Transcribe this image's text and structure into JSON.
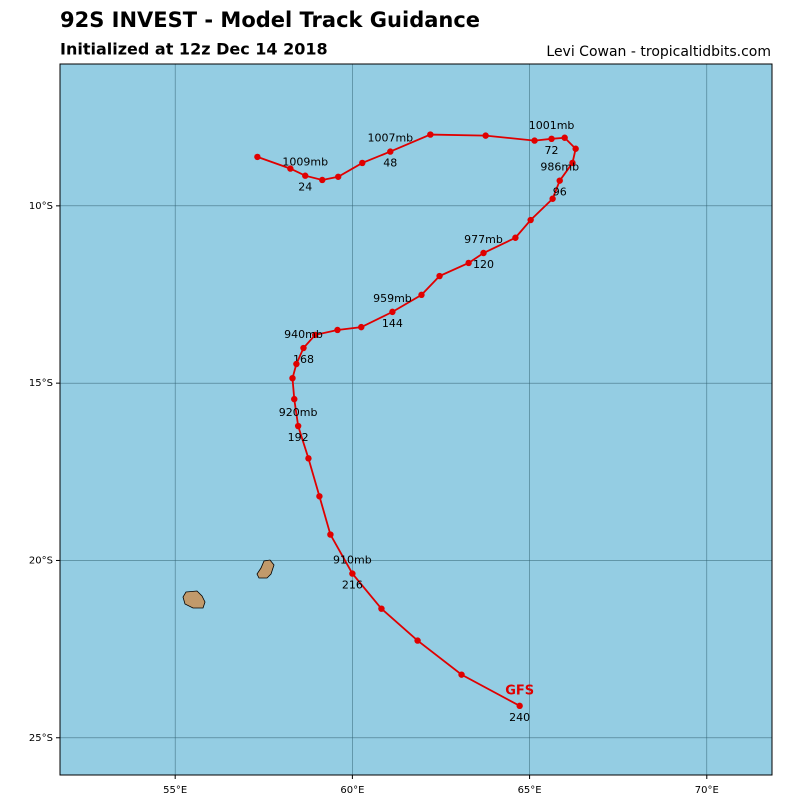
{
  "chart_data": {
    "type": "track",
    "title": "92S INVEST - Model Track Guidance",
    "subtitle": "Initialized at 12z Dec 14 2018",
    "credit": "Levi Cowan - tropicaltidbits.com",
    "xlim": [
      51.75,
      71.84
    ],
    "ylim": [
      -26.05,
      -6
    ],
    "xticks": [
      {
        "value": 55,
        "label": "55°E"
      },
      {
        "value": 60,
        "label": "60°E"
      },
      {
        "value": 65,
        "label": "65°E"
      },
      {
        "value": 70,
        "label": "70°E"
      }
    ],
    "yticks": [
      {
        "value": -10,
        "label": "10°S"
      },
      {
        "value": -15,
        "label": "15°S"
      },
      {
        "value": -20,
        "label": "20°S"
      },
      {
        "value": -25,
        "label": "25°S"
      }
    ],
    "grid": true,
    "ocean_color": "#94cde3",
    "land_color": "#c19a6b",
    "series": [
      {
        "name": "GFS",
        "color": "#e00000",
        "x": [
          57.32,
          58.25,
          58.67,
          59.15,
          59.6,
          60.28,
          61.07,
          62.2,
          63.76,
          65.14,
          65.62,
          65.99,
          66.3,
          66.21,
          65.85,
          65.65,
          65.03,
          64.6,
          63.7,
          63.28,
          62.46,
          61.95,
          61.13,
          60.25,
          59.58,
          58.95,
          58.62,
          58.42,
          58.31,
          58.36,
          58.47,
          58.76,
          59.07,
          59.38,
          60.0,
          60.82,
          61.84,
          63.08,
          64.72
        ],
        "values": [
          -8.62,
          -8.95,
          -9.15,
          -9.27,
          -9.18,
          -8.79,
          -8.47,
          -7.99,
          -8.02,
          -8.16,
          -8.11,
          -8.08,
          -8.39,
          -8.79,
          -9.29,
          -9.8,
          -10.4,
          -10.9,
          -11.33,
          -11.61,
          -11.98,
          -12.51,
          -12.99,
          -13.42,
          -13.5,
          -13.64,
          -14.01,
          -14.46,
          -14.86,
          -15.45,
          -16.21,
          -17.12,
          -18.19,
          -19.27,
          -20.37,
          -21.36,
          -22.26,
          -23.22,
          -24.1
        ],
        "pressure_labels": [
          null,
          null,
          "1009mb",
          null,
          null,
          null,
          "1007mb",
          null,
          null,
          null,
          "1001mb",
          null,
          null,
          null,
          "986mb",
          null,
          null,
          null,
          "977mb",
          null,
          null,
          null,
          "959mb",
          null,
          null,
          null,
          "940mb",
          null,
          null,
          null,
          "920mb",
          null,
          null,
          null,
          "910mb",
          null,
          null,
          null,
          null
        ],
        "hour_labels": [
          null,
          null,
          "24",
          null,
          null,
          null,
          "48",
          null,
          null,
          null,
          "72",
          null,
          null,
          null,
          "96",
          null,
          null,
          null,
          "120",
          null,
          null,
          null,
          "144",
          null,
          null,
          null,
          "168",
          null,
          null,
          null,
          "192",
          null,
          null,
          null,
          "216",
          null,
          null,
          null,
          "240"
        ]
      }
    ]
  }
}
